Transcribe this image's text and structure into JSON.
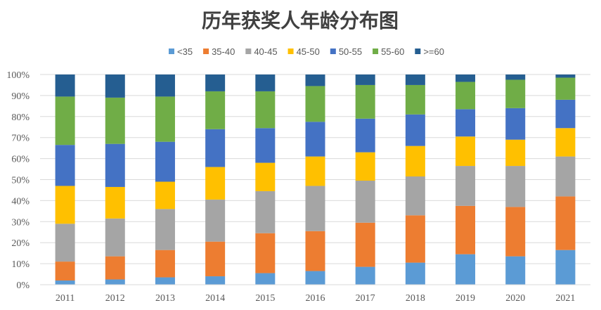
{
  "chart_data": {
    "type": "bar",
    "stacked": true,
    "normalized": true,
    "title": "历年获奖人年龄分布图",
    "categories": [
      "2011",
      "2012",
      "2013",
      "2014",
      "2015",
      "2016",
      "2017",
      "2018",
      "2019",
      "2020",
      "2021"
    ],
    "ylim": [
      0,
      100
    ],
    "yticks": [
      "0%",
      "10%",
      "20%",
      "30%",
      "40%",
      "50%",
      "60%",
      "70%",
      "80%",
      "90%",
      "100%"
    ],
    "grid": true,
    "legend_position": "top",
    "series": [
      {
        "name": "<35",
        "color": "#5B9BD5",
        "values": [
          2,
          2.5,
          3.5,
          4,
          5.5,
          6.5,
          8.5,
          10.5,
          14.5,
          13.5,
          16.5
        ]
      },
      {
        "name": "35-40",
        "color": "#ED7D31",
        "values": [
          9,
          11,
          13,
          16.5,
          19,
          19,
          21,
          22.5,
          23,
          23.5,
          25.5
        ]
      },
      {
        "name": "40-45",
        "color": "#A5A5A5",
        "values": [
          18,
          18,
          19.5,
          20,
          20,
          21.5,
          20,
          18.5,
          19,
          19.5,
          19
        ]
      },
      {
        "name": "45-50",
        "color": "#FFC000",
        "values": [
          18,
          15,
          13,
          15.5,
          13.5,
          14,
          13.5,
          14.5,
          14,
          12.5,
          13.5
        ]
      },
      {
        "name": "50-55",
        "color": "#4472C4",
        "values": [
          19.5,
          20.5,
          19,
          18,
          16.5,
          16.5,
          16,
          15,
          13,
          15,
          13.5
        ]
      },
      {
        "name": "55-60",
        "color": "#70AD47",
        "values": [
          23,
          22,
          21.5,
          18,
          17.5,
          17,
          16,
          14,
          13,
          13.5,
          10.5
        ]
      },
      {
        "name": ">=60",
        "color": "#255E91",
        "values": [
          10.5,
          11,
          10.5,
          8,
          8,
          5.5,
          5,
          5,
          3.5,
          2.5,
          1.5
        ]
      }
    ]
  }
}
